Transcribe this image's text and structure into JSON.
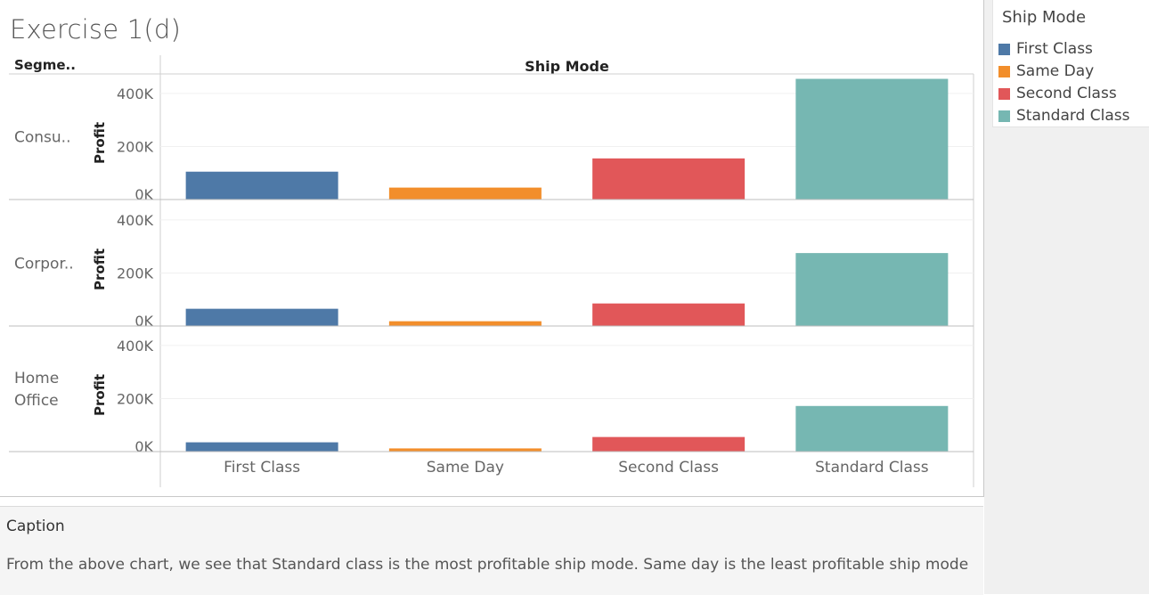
{
  "title": "Exercise 1(d)",
  "colors": {
    "First Class": "#4e79a7",
    "Same Day": "#f28e2b",
    "Second Class": "#e15759",
    "Standard Class": "#76b7b2"
  },
  "legend": {
    "title": "Ship Mode",
    "items": [
      {
        "label": "First Class",
        "color": "#4e79a7"
      },
      {
        "label": "Same Day",
        "color": "#f28e2b"
      },
      {
        "label": "Second Class",
        "color": "#e15759"
      },
      {
        "label": "Standard Class",
        "color": "#76b7b2"
      }
    ]
  },
  "chart_data": {
    "type": "bar",
    "row_header": "Segme..",
    "column_header": "Ship Mode",
    "ylabel": "Profit",
    "categories": [
      "First Class",
      "Same Day",
      "Second Class",
      "Standard Class"
    ],
    "yticks": [
      {
        "value": 0,
        "label": "0K"
      },
      {
        "value": 200000,
        "label": "200K"
      },
      {
        "value": 400000,
        "label": "400K"
      }
    ],
    "ylim": [
      0,
      450000
    ],
    "panels": [
      {
        "segment_lines": [
          "Consu.."
        ],
        "values": [
          105000,
          45000,
          155000,
          455000
        ]
      },
      {
        "segment_lines": [
          "Corpor.."
        ],
        "values": [
          65000,
          18000,
          85000,
          275000
        ]
      },
      {
        "segment_lines": [
          "Home",
          "Office"
        ],
        "values": [
          35000,
          12000,
          55000,
          172000
        ]
      }
    ]
  },
  "caption": {
    "title": "Caption",
    "text": "From the above chart, we see that Standard class is the most profitable ship mode. Same day is the least profitable ship mode"
  }
}
